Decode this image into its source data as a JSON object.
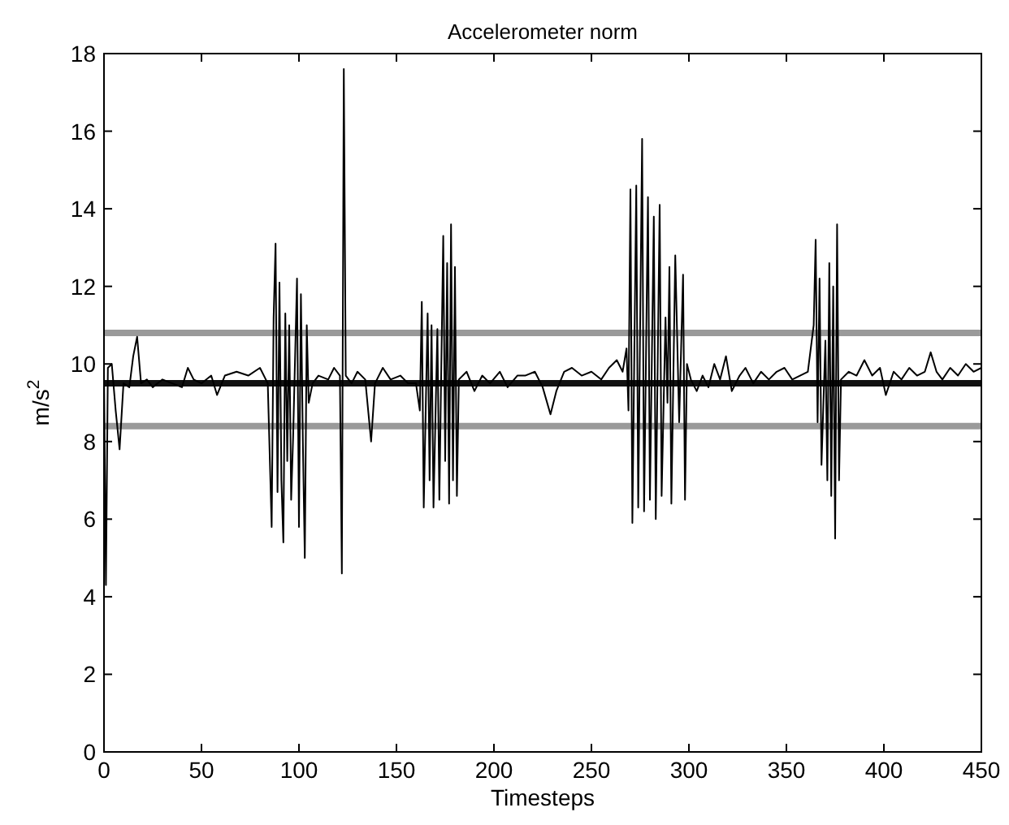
{
  "chart_data": {
    "type": "line",
    "title": "Accelerometer norm",
    "xlabel": "Timesteps",
    "ylabel": "m/s$^{2}$",
    "xlim": [
      0,
      450
    ],
    "xticks": [
      0,
      50,
      100,
      150,
      200,
      250,
      300,
      350,
      400,
      450
    ],
    "ylim": [
      0,
      18
    ],
    "yticks": [
      0,
      2,
      4,
      6,
      8,
      10,
      12,
      14,
      16,
      18
    ],
    "grid": false,
    "marker": "none",
    "line_style": "solid",
    "ref_lines": [
      {
        "axis": "y",
        "value": 10.8,
        "color": "#9a9a9a"
      },
      {
        "axis": "y",
        "value": 9.5,
        "color": "#111111"
      },
      {
        "axis": "y",
        "value": 8.4,
        "color": "#9a9a9a"
      }
    ],
    "series": [
      {
        "color": "#000000",
        "x": [
          0,
          1,
          2,
          4,
          6,
          8,
          10,
          13,
          15,
          17,
          19,
          22,
          25,
          30,
          35,
          40,
          43,
          46,
          50,
          55,
          58,
          62,
          68,
          74,
          80,
          84,
          86,
          87,
          88,
          89,
          90,
          91,
          92,
          93,
          94,
          95,
          96,
          97,
          99,
          100,
          101,
          102,
          103,
          104,
          105,
          107,
          110,
          115,
          118,
          121,
          122,
          123,
          124,
          127,
          130,
          134,
          137,
          139,
          143,
          147,
          152,
          156,
          160,
          162,
          163,
          164,
          166,
          167,
          168,
          169,
          171,
          172,
          174,
          175,
          176,
          177,
          178,
          179,
          180,
          181,
          182,
          186,
          190,
          194,
          198,
          203,
          207,
          212,
          216,
          221,
          225,
          229,
          232,
          236,
          240,
          245,
          250,
          255,
          259,
          263,
          266,
          268,
          269,
          270,
          271,
          273,
          274,
          276,
          277,
          279,
          280,
          282,
          283,
          285,
          286,
          288,
          289,
          290,
          291,
          293,
          295,
          297,
          298,
          299,
          301,
          304,
          307,
          310,
          313,
          316,
          319,
          322,
          326,
          329,
          333,
          337,
          341,
          345,
          349,
          353,
          357,
          361,
          364,
          365,
          366,
          367,
          368,
          370,
          371,
          372,
          373,
          374,
          375,
          376,
          377,
          378,
          382,
          386,
          390,
          394,
          398,
          401,
          405,
          409,
          413,
          417,
          421,
          424,
          427,
          430,
          434,
          438,
          442,
          446,
          450
        ],
        "values": [
          9.8,
          4.3,
          9.9,
          10.0,
          8.8,
          7.8,
          9.5,
          9.4,
          10.2,
          10.7,
          9.5,
          9.6,
          9.4,
          9.6,
          9.5,
          9.4,
          9.9,
          9.6,
          9.5,
          9.7,
          9.2,
          9.7,
          9.8,
          9.7,
          9.9,
          9.5,
          5.8,
          11.2,
          13.1,
          6.7,
          12.1,
          7.0,
          5.4,
          11.3,
          7.5,
          11.0,
          6.5,
          8.1,
          12.2,
          5.8,
          11.8,
          8.0,
          5.0,
          11.0,
          9.0,
          9.5,
          9.7,
          9.6,
          9.9,
          9.7,
          4.6,
          17.6,
          9.7,
          9.5,
          9.8,
          9.6,
          8.0,
          9.5,
          9.9,
          9.6,
          9.7,
          9.5,
          9.5,
          8.8,
          11.6,
          6.3,
          11.3,
          7.0,
          11.0,
          6.3,
          10.9,
          6.5,
          13.3,
          7.5,
          12.6,
          6.4,
          13.6,
          7.0,
          12.5,
          6.6,
          9.6,
          9.8,
          9.3,
          9.7,
          9.5,
          9.8,
          9.4,
          9.7,
          9.7,
          9.8,
          9.4,
          8.7,
          9.3,
          9.8,
          9.9,
          9.7,
          9.8,
          9.6,
          9.9,
          10.1,
          9.8,
          10.4,
          8.8,
          14.5,
          5.9,
          14.6,
          6.3,
          15.8,
          6.2,
          14.3,
          6.5,
          13.8,
          6.0,
          14.1,
          6.6,
          11.2,
          9.0,
          12.5,
          6.4,
          12.8,
          8.5,
          12.3,
          6.5,
          10.0,
          9.6,
          9.3,
          9.7,
          9.4,
          10.0,
          9.6,
          10.2,
          9.3,
          9.7,
          9.9,
          9.5,
          9.8,
          9.6,
          9.8,
          9.9,
          9.6,
          9.7,
          9.8,
          11.0,
          13.2,
          8.5,
          12.2,
          7.4,
          10.6,
          7.0,
          12.6,
          6.6,
          12.0,
          5.5,
          13.6,
          7.0,
          9.6,
          9.8,
          9.7,
          10.1,
          9.7,
          9.9,
          9.2,
          9.8,
          9.6,
          9.9,
          9.7,
          9.8,
          10.3,
          9.8,
          9.6,
          9.9,
          9.7,
          10.0,
          9.8,
          9.9
        ]
      }
    ]
  }
}
